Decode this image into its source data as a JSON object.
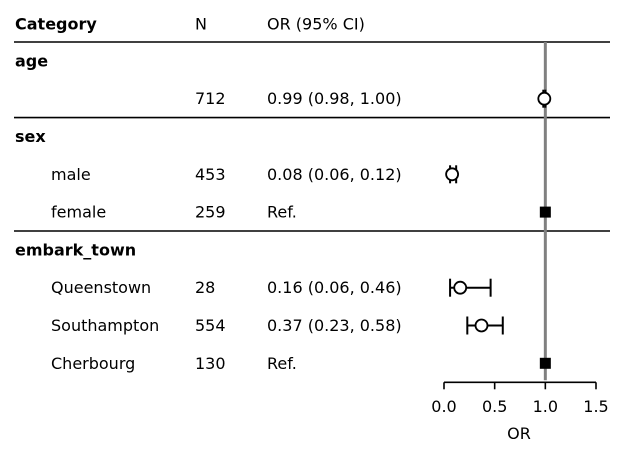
{
  "chart_data": {
    "type": "forest",
    "columns": {
      "category": "Category",
      "n": "N",
      "or_ci": "OR (95% CI)"
    },
    "reference_line": 1.0,
    "x_axis": {
      "label": "OR",
      "ticks": [
        0.0,
        0.5,
        1.0,
        1.5
      ],
      "tick_labels": [
        "0.0",
        "0.5",
        "1.0",
        "1.5"
      ],
      "range": [
        0.0,
        1.5
      ]
    },
    "groups": [
      {
        "name": "age",
        "rows": [
          {
            "label": "",
            "n": "712",
            "text": "0.99 (0.98, 1.00)",
            "or": 0.99,
            "lo": 0.98,
            "hi": 1.0,
            "ref": false
          }
        ]
      },
      {
        "name": "sex",
        "rows": [
          {
            "label": "male",
            "n": "453",
            "text": "0.08 (0.06, 0.12)",
            "or": 0.08,
            "lo": 0.06,
            "hi": 0.12,
            "ref": false
          },
          {
            "label": "female",
            "n": "259",
            "text": "Ref.",
            "or": 1.0,
            "lo": null,
            "hi": null,
            "ref": true
          }
        ]
      },
      {
        "name": "embark_town",
        "rows": [
          {
            "label": "Queenstown",
            "n": "28",
            "text": "0.16 (0.06, 0.46)",
            "or": 0.16,
            "lo": 0.06,
            "hi": 0.46,
            "ref": false
          },
          {
            "label": "Southampton",
            "n": "554",
            "text": "0.37 (0.23, 0.58)",
            "or": 0.37,
            "lo": 0.23,
            "hi": 0.58,
            "ref": false
          },
          {
            "label": "Cherbourg",
            "n": "130",
            "text": "Ref.",
            "or": 1.0,
            "lo": null,
            "hi": null,
            "ref": true
          }
        ]
      }
    ]
  }
}
